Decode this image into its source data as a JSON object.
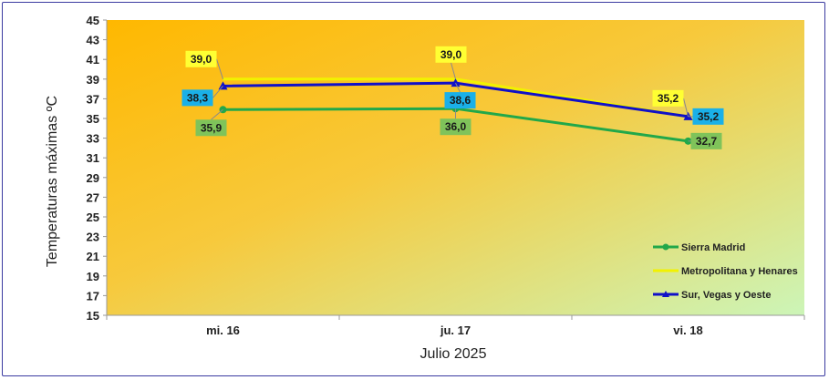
{
  "chart_data": {
    "type": "line",
    "categories": [
      "mi. 16",
      "ju. 17",
      "vi. 18"
    ],
    "xlabel": "Julio 2025",
    "ylabel": "Temperaturas máximas ºC",
    "ylim": [
      15,
      45
    ],
    "yticks": [
      15,
      17,
      19,
      21,
      23,
      25,
      27,
      29,
      31,
      33,
      35,
      37,
      39,
      41,
      43,
      45
    ],
    "grid": false,
    "legend_position": "bottom-right",
    "series": [
      {
        "name": "Sierra Madrid",
        "values": [
          35.9,
          36.0,
          32.7
        ],
        "labels": [
          "35,9",
          "36,0",
          "32,7"
        ],
        "color": "#22a84a",
        "marker": "circle",
        "label_bg": "#7fc35a"
      },
      {
        "name": "Metropolitana y Henares",
        "values": [
          39.0,
          39.0,
          35.2
        ],
        "labels": [
          "39,0",
          "39,0",
          "35,2"
        ],
        "color": "#f2f200",
        "marker": "none",
        "label_bg": "#ffff33"
      },
      {
        "name": "Sur, Vegas y Oeste",
        "values": [
          38.3,
          38.6,
          35.2
        ],
        "labels": [
          "38,3",
          "38,6",
          "35,2"
        ],
        "color": "#1010c8",
        "marker": "triangle",
        "label_bg": "#1ab0e8"
      }
    ]
  }
}
